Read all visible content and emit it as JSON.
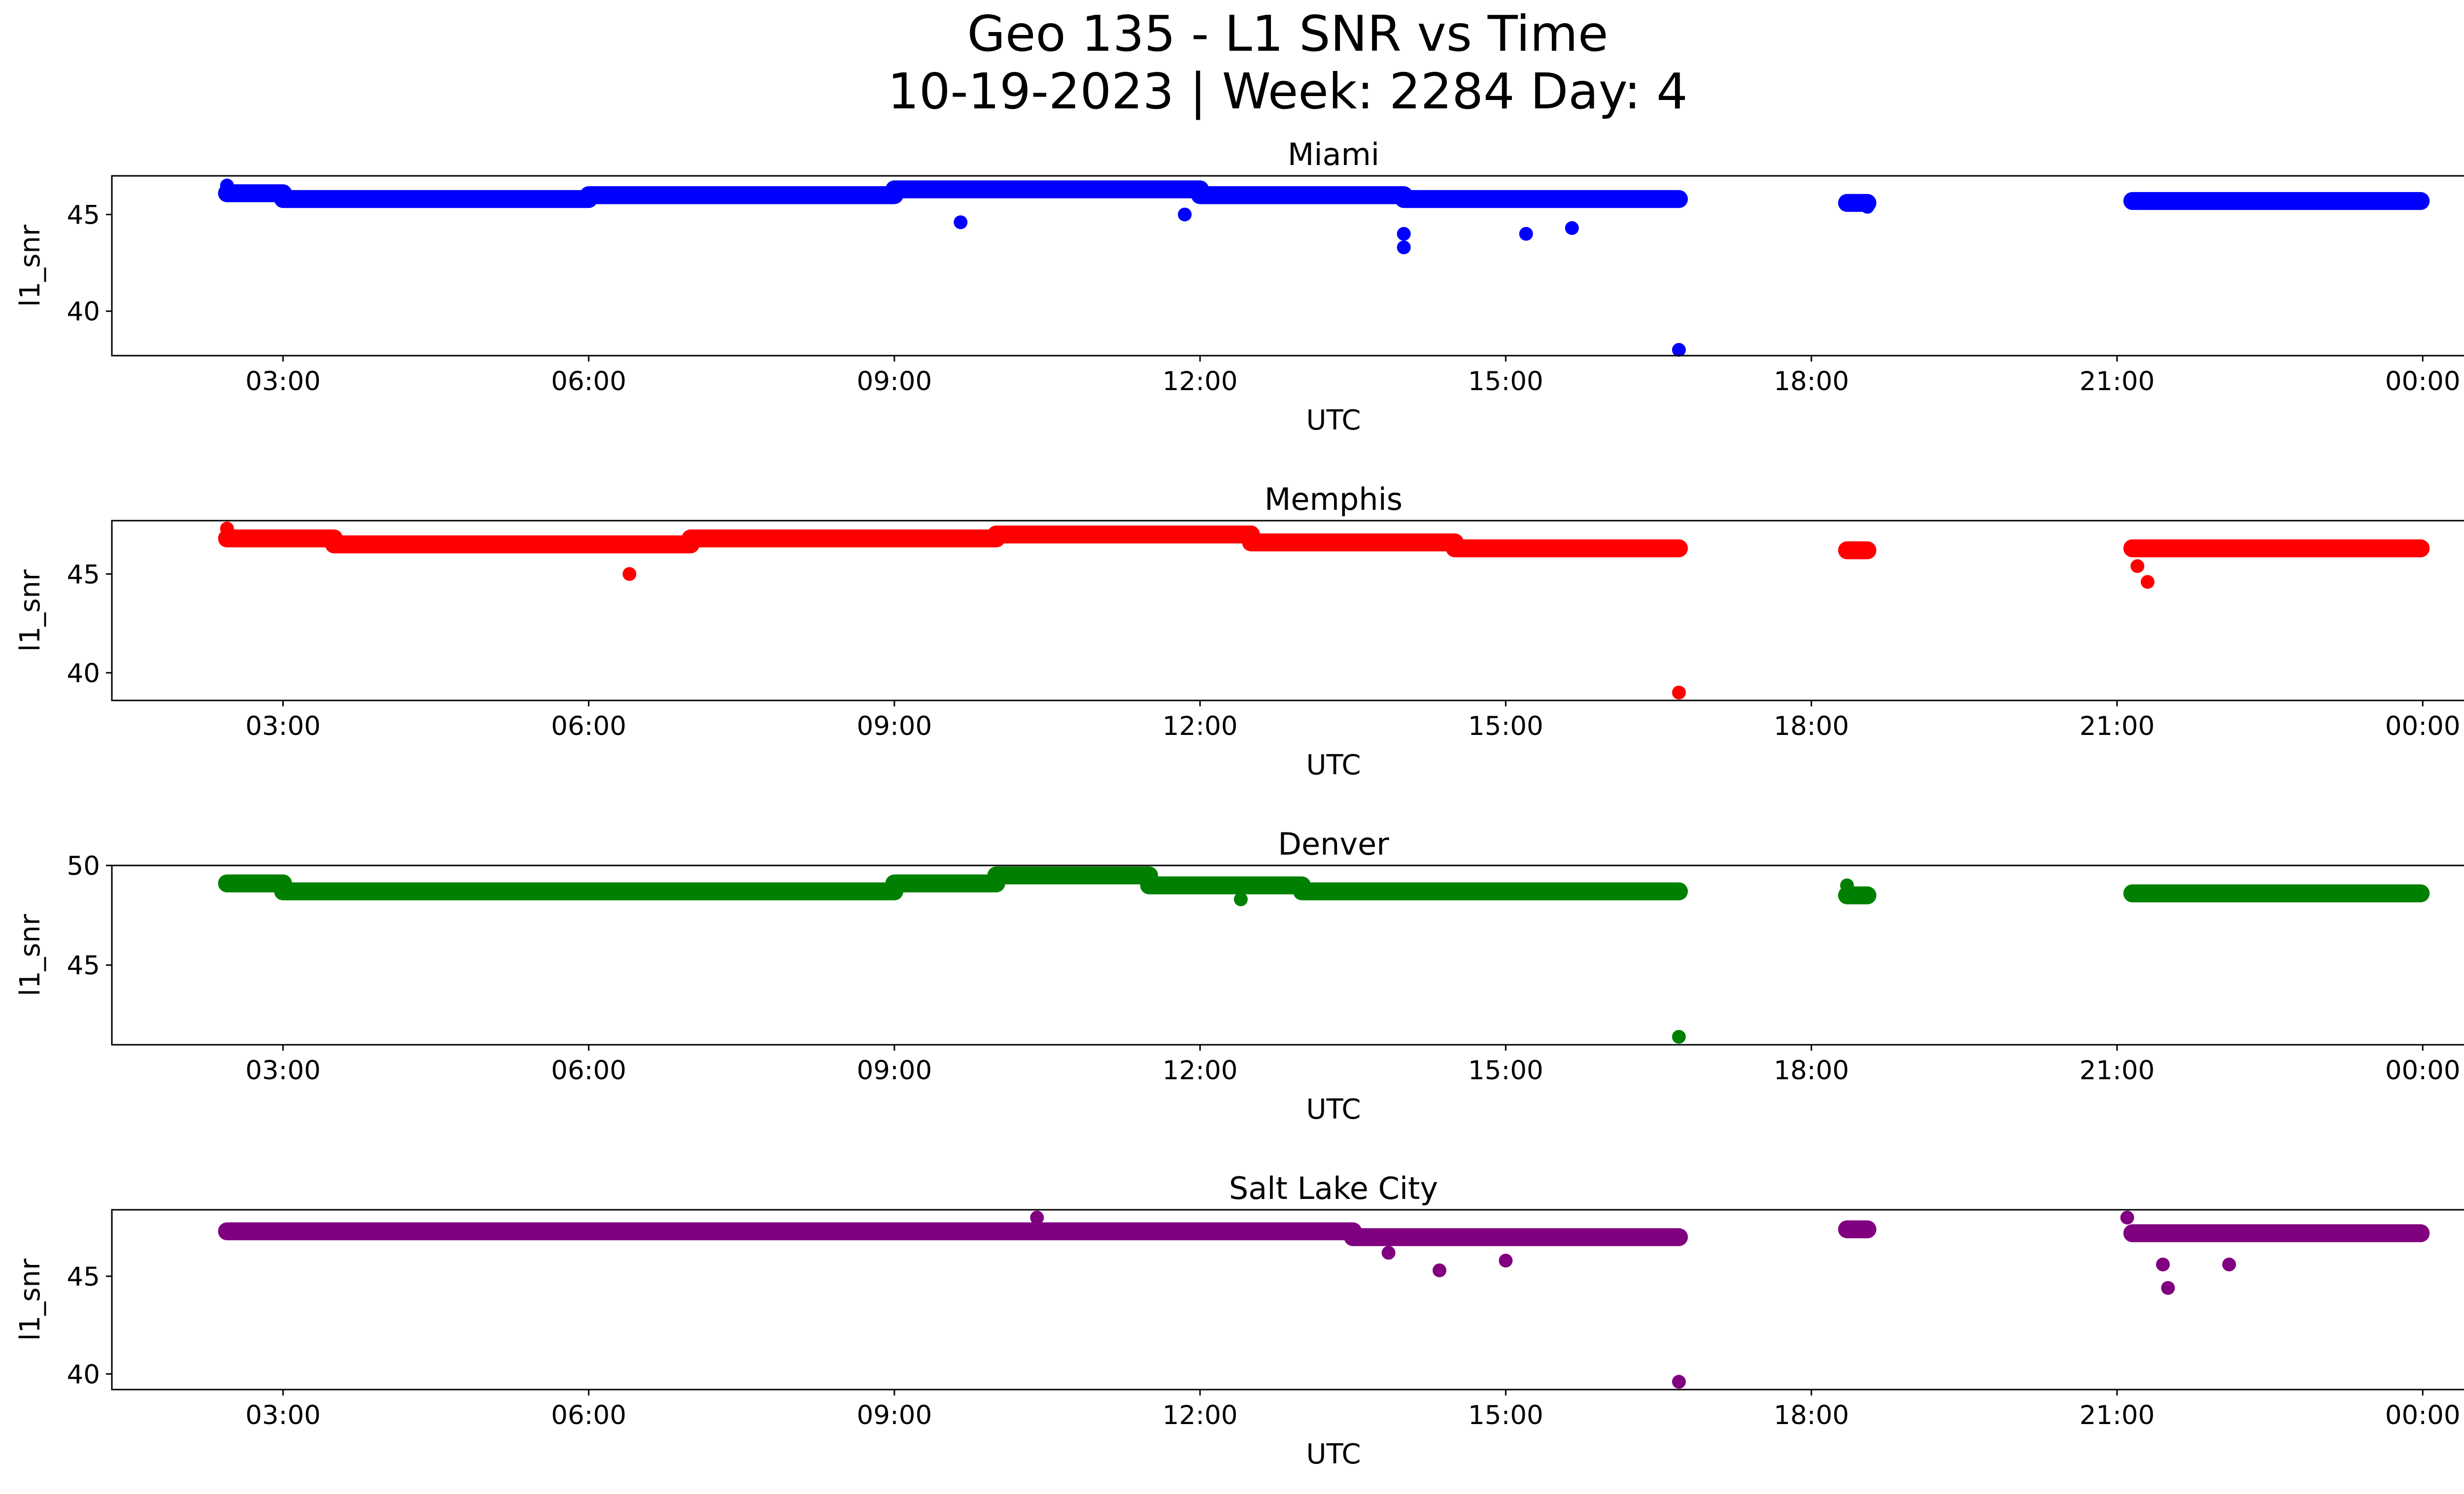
{
  "figure": {
    "title_line1": "Geo 135 - L1 SNR vs Time",
    "title_line2": "10-19-2023 | Week: 2284 Day: 4"
  },
  "chart_data": [
    {
      "type": "scatter",
      "title": "Miami",
      "xlabel": "UTC",
      "ylabel": "l1_snr",
      "color": "#0000ff",
      "xlim": [
        1.32,
        25.3
      ],
      "ylim": [
        37.7,
        47.0
      ],
      "x_ticks": [
        "03:00",
        "06:00",
        "09:00",
        "12:00",
        "15:00",
        "18:00",
        "21:00",
        "00:00"
      ],
      "x_tick_values": [
        3,
        6,
        9,
        12,
        15,
        18,
        21,
        24
      ],
      "y_ticks": [
        40,
        45
      ],
      "segments": [
        {
          "start": 2.45,
          "end": 3.0,
          "value": 46.1
        },
        {
          "start": 3.0,
          "end": 6.0,
          "value": 45.8
        },
        {
          "start": 6.0,
          "end": 9.0,
          "value": 46.0
        },
        {
          "start": 9.0,
          "end": 12.0,
          "value": 46.3
        },
        {
          "start": 12.0,
          "end": 14.0,
          "value": 46.0
        },
        {
          "start": 14.0,
          "end": 16.7,
          "value": 45.8
        },
        {
          "start": 18.35,
          "end": 18.55,
          "value": 45.6
        },
        {
          "start": 21.15,
          "end": 23.98,
          "value": 45.7
        }
      ],
      "points": [
        [
          2.45,
          46.5
        ],
        [
          9.65,
          44.6
        ],
        [
          11.85,
          45.0
        ],
        [
          14.0,
          43.3
        ],
        [
          14.0,
          44.0
        ],
        [
          15.2,
          44.0
        ],
        [
          15.65,
          44.3
        ],
        [
          16.7,
          38.0
        ],
        [
          18.35,
          45.6
        ],
        [
          18.55,
          45.4
        ]
      ]
    },
    {
      "type": "scatter",
      "title": "Memphis",
      "xlabel": "UTC",
      "ylabel": "l1_snr",
      "color": "#ff0000",
      "xlim": [
        1.32,
        25.3
      ],
      "ylim": [
        38.6,
        47.7
      ],
      "x_ticks": [
        "03:00",
        "06:00",
        "09:00",
        "12:00",
        "15:00",
        "18:00",
        "21:00",
        "00:00"
      ],
      "x_tick_values": [
        3,
        6,
        9,
        12,
        15,
        18,
        21,
        24
      ],
      "y_ticks": [
        40,
        45
      ],
      "segments": [
        {
          "start": 2.45,
          "end": 3.5,
          "value": 46.8
        },
        {
          "start": 3.5,
          "end": 7.0,
          "value": 46.5
        },
        {
          "start": 7.0,
          "end": 10.0,
          "value": 46.8
        },
        {
          "start": 10.0,
          "end": 12.5,
          "value": 47.0
        },
        {
          "start": 12.5,
          "end": 14.5,
          "value": 46.6
        },
        {
          "start": 14.5,
          "end": 16.7,
          "value": 46.3
        },
        {
          "start": 18.35,
          "end": 18.55,
          "value": 46.2
        },
        {
          "start": 21.15,
          "end": 23.98,
          "value": 46.3
        }
      ],
      "points": [
        [
          2.45,
          47.3
        ],
        [
          6.4,
          45.0
        ],
        [
          16.7,
          39.0
        ],
        [
          21.3,
          44.6
        ],
        [
          21.2,
          45.4
        ]
      ]
    },
    {
      "type": "scatter",
      "title": "Denver",
      "xlabel": "UTC",
      "ylabel": "l1_snr",
      "color": "#008000",
      "xlim": [
        1.32,
        25.3
      ],
      "ylim": [
        41.0,
        50.0
      ],
      "x_ticks": [
        "03:00",
        "06:00",
        "09:00",
        "12:00",
        "15:00",
        "18:00",
        "21:00",
        "00:00"
      ],
      "x_tick_values": [
        3,
        6,
        9,
        12,
        15,
        18,
        21,
        24
      ],
      "y_ticks": [
        45,
        50
      ],
      "segments": [
        {
          "start": 2.45,
          "end": 3.0,
          "value": 49.1
        },
        {
          "start": 3.0,
          "end": 9.0,
          "value": 48.7
        },
        {
          "start": 9.0,
          "end": 10.0,
          "value": 49.1
        },
        {
          "start": 10.0,
          "end": 11.5,
          "value": 49.5
        },
        {
          "start": 11.5,
          "end": 13.0,
          "value": 49.0
        },
        {
          "start": 13.0,
          "end": 16.7,
          "value": 48.7
        },
        {
          "start": 18.35,
          "end": 18.55,
          "value": 48.5
        },
        {
          "start": 21.15,
          "end": 23.98,
          "value": 48.6
        }
      ],
      "points": [
        [
          12.4,
          48.3
        ],
        [
          16.7,
          41.4
        ],
        [
          18.35,
          49.0
        ]
      ]
    },
    {
      "type": "scatter",
      "title": "Salt Lake City",
      "xlabel": "UTC",
      "ylabel": "l1_snr",
      "color": "#800080",
      "xlim": [
        1.32,
        25.3
      ],
      "ylim": [
        39.2,
        48.4
      ],
      "x_ticks": [
        "03:00",
        "06:00",
        "09:00",
        "12:00",
        "15:00",
        "18:00",
        "21:00",
        "00:00"
      ],
      "x_tick_values": [
        3,
        6,
        9,
        12,
        15,
        18,
        21,
        24
      ],
      "y_ticks": [
        40,
        45
      ],
      "segments": [
        {
          "start": 2.45,
          "end": 13.5,
          "value": 47.3
        },
        {
          "start": 13.5,
          "end": 16.7,
          "value": 47.0
        },
        {
          "start": 18.35,
          "end": 18.55,
          "value": 47.4
        },
        {
          "start": 21.15,
          "end": 23.98,
          "value": 47.2
        }
      ],
      "points": [
        [
          10.4,
          48.0
        ],
        [
          13.85,
          46.2
        ],
        [
          14.35,
          45.3
        ],
        [
          15.0,
          45.8
        ],
        [
          16.7,
          39.6
        ],
        [
          21.5,
          44.4
        ],
        [
          21.45,
          45.6
        ],
        [
          22.1,
          45.6
        ],
        [
          21.1,
          48.0
        ]
      ]
    }
  ]
}
